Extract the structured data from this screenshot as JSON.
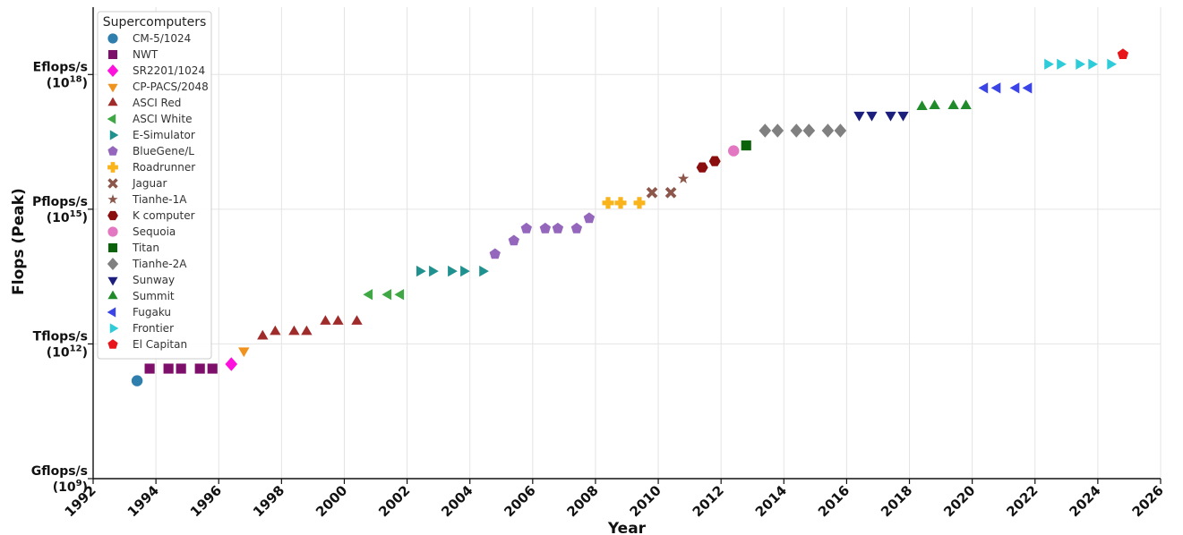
{
  "chart_data": {
    "type": "scatter",
    "title": "",
    "xlabel": "Year",
    "ylabel": "Flops (Peak)",
    "xlim": [
      1992,
      2026
    ],
    "ylim": [
      9,
      19.5
    ],
    "x_ticks": [
      1992,
      1994,
      1996,
      1998,
      2000,
      2002,
      2004,
      2006,
      2008,
      2010,
      2012,
      2014,
      2016,
      2018,
      2020,
      2022,
      2024,
      2026
    ],
    "y_ticks": [
      {
        "value": 9,
        "label": "Gflops/s",
        "sup_base": "(10",
        "sup_exp": "9",
        "suffix": ")"
      },
      {
        "value": 12,
        "label": "Tflops/s",
        "sup_base": "(10",
        "sup_exp": "12",
        "suffix": ")"
      },
      {
        "value": 15,
        "label": "Pflops/s",
        "sup_base": "(10",
        "sup_exp": "15",
        "suffix": ")"
      },
      {
        "value": 18,
        "label": "Eflops/s",
        "sup_base": "(10",
        "sup_exp": "18",
        "suffix": ")"
      }
    ],
    "y_scale": "log10",
    "grid": true,
    "legend_title": "Supercomputers",
    "legend_position": "top-left",
    "series": [
      {
        "name": "CM-5/1024",
        "marker": "circle",
        "color": "#2e7fad",
        "x": [
          1993.4
        ],
        "y": [
          11.18
        ]
      },
      {
        "name": "NWT",
        "marker": "square",
        "color": "#7d0e6a",
        "x": [
          1993.8,
          1994.4,
          1994.8,
          1995.4,
          1995.8
        ],
        "y": [
          11.45,
          11.45,
          11.45,
          11.45,
          11.45
        ]
      },
      {
        "name": "SR2201/1024",
        "marker": "diamond",
        "color": "#ff11dd",
        "x": [
          1996.4
        ],
        "y": [
          11.55
        ]
      },
      {
        "name": "CP-PACS/2048",
        "marker": "triangle-down",
        "color": "#f0921e",
        "x": [
          1996.8
        ],
        "y": [
          11.85
        ]
      },
      {
        "name": "ASCI Red",
        "marker": "triangle-up",
        "color": "#a02b2b",
        "x": [
          1997.4,
          1997.8,
          1998.4,
          1998.8,
          1999.4,
          1999.8,
          2000.4
        ],
        "y": [
          12.17,
          12.27,
          12.27,
          12.27,
          12.5,
          12.5,
          12.5
        ]
      },
      {
        "name": "ASCI White",
        "marker": "triangle-left",
        "color": "#3fa845",
        "x": [
          2000.8,
          2001.4,
          2001.8
        ],
        "y": [
          13.1,
          13.1,
          13.1
        ]
      },
      {
        "name": "E-Simulator",
        "marker": "triangle-right",
        "color": "#1f918f",
        "x": [
          2002.4,
          2002.8,
          2003.4,
          2003.8,
          2004.4
        ],
        "y": [
          13.62,
          13.62,
          13.62,
          13.62,
          13.62
        ]
      },
      {
        "name": "BlueGene/L",
        "marker": "pentagon",
        "color": "#9467bd",
        "x": [
          2004.8,
          2005.4,
          2005.8,
          2006.4,
          2006.8,
          2007.4,
          2007.8
        ],
        "y": [
          14.0,
          14.3,
          14.57,
          14.57,
          14.57,
          14.57,
          14.8
        ]
      },
      {
        "name": "Roadrunner",
        "marker": "plus",
        "color": "#f9b41c",
        "x": [
          2008.4,
          2008.8,
          2009.4
        ],
        "y": [
          15.14,
          15.14,
          15.14
        ]
      },
      {
        "name": "Jaguar",
        "marker": "x",
        "color": "#8c564b",
        "x": [
          2009.8,
          2010.4
        ],
        "y": [
          15.37,
          15.37
        ]
      },
      {
        "name": "Tianhe-1A",
        "marker": "star",
        "color": "#8c564b",
        "x": [
          2010.8
        ],
        "y": [
          15.68
        ]
      },
      {
        "name": "K computer",
        "marker": "hexagon",
        "color": "#8b0e0e",
        "x": [
          2011.4,
          2011.8
        ],
        "y": [
          15.93,
          16.07
        ]
      },
      {
        "name": "Sequoia",
        "marker": "circle",
        "color": "#e377c2",
        "x": [
          2012.4
        ],
        "y": [
          16.3
        ]
      },
      {
        "name": "Titan",
        "marker": "square",
        "color": "#0a630a",
        "x": [
          2012.8
        ],
        "y": [
          16.42
        ]
      },
      {
        "name": "Tianhe-2A",
        "marker": "diamond",
        "color": "#808080",
        "x": [
          2013.4,
          2013.8,
          2014.4,
          2014.8,
          2015.4,
          2015.8
        ],
        "y": [
          16.75,
          16.75,
          16.75,
          16.75,
          16.75,
          16.75
        ]
      },
      {
        "name": "Sunway",
        "marker": "triangle-down",
        "color": "#1b1e7c",
        "x": [
          2016.4,
          2016.8,
          2017.4,
          2017.8
        ],
        "y": [
          17.1,
          17.1,
          17.1,
          17.1
        ]
      },
      {
        "name": "Summit",
        "marker": "triangle-up",
        "color": "#208b2a",
        "x": [
          2018.4,
          2018.8,
          2019.4,
          2019.8
        ],
        "y": [
          17.28,
          17.3,
          17.3,
          17.3
        ]
      },
      {
        "name": "Fugaku",
        "marker": "triangle-left",
        "color": "#3b44e6",
        "x": [
          2020.4,
          2020.8,
          2021.4,
          2021.8
        ],
        "y": [
          17.7,
          17.7,
          17.7,
          17.7
        ]
      },
      {
        "name": "Frontier",
        "marker": "triangle-right",
        "color": "#2ecbd8",
        "x": [
          2022.4,
          2022.8,
          2023.4,
          2023.8,
          2024.4
        ],
        "y": [
          18.23,
          18.23,
          18.23,
          18.23,
          18.23
        ]
      },
      {
        "name": "El Capitan",
        "marker": "pentagon",
        "color": "#e8161a",
        "x": [
          2024.8
        ],
        "y": [
          18.45
        ]
      }
    ]
  }
}
